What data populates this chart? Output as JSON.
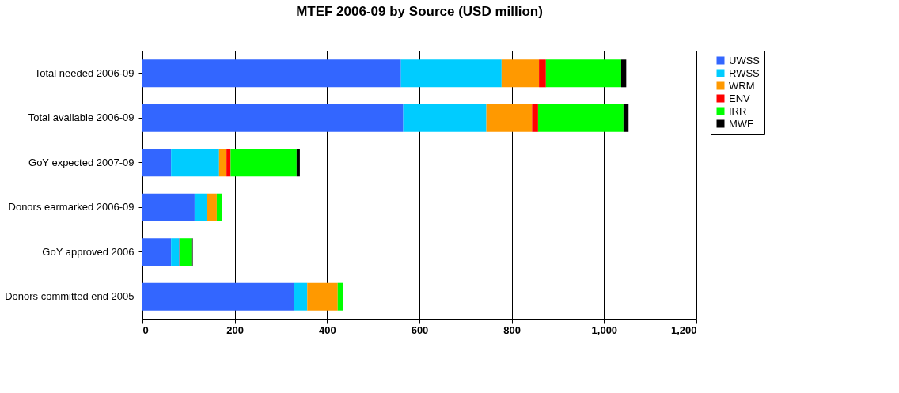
{
  "chart_data": {
    "type": "bar",
    "orientation": "horizontal",
    "stacked": true,
    "title": "MTEF 2006-09 by Source (USD million)",
    "categories": [
      "Total needed 2006-09",
      "Total available 2006-09",
      "GoY expected 2007-09",
      "Donors earmarked 2006-09",
      "GoY approved 2006",
      "Donors committed end 2005"
    ],
    "series": [
      {
        "name": "UWSS",
        "color": "#3366ff",
        "values": [
          560,
          565,
          62,
          113,
          62,
          329
        ]
      },
      {
        "name": "RWSS",
        "color": "#00ccff",
        "values": [
          218,
          180,
          104,
          27,
          18,
          28
        ]
      },
      {
        "name": "WRM",
        "color": "#ff9900",
        "values": [
          81,
          99,
          16,
          21,
          0,
          66
        ]
      },
      {
        "name": "ENV",
        "color": "#ff0000",
        "values": [
          15,
          13,
          9,
          0,
          2,
          0
        ]
      },
      {
        "name": "IRR",
        "color": "#00ff00",
        "values": [
          163,
          185,
          143,
          11,
          24,
          11
        ]
      },
      {
        "name": "MWE",
        "color": "#000000",
        "values": [
          11,
          11,
          7,
          0,
          3,
          0
        ]
      }
    ],
    "xlim": [
      0,
      1200
    ],
    "xticks": [
      0,
      200,
      400,
      600,
      800,
      {
        "value": 1000,
        "label": "1,000"
      },
      {
        "value": 1200,
        "label": "1,200"
      }
    ],
    "grid": "x",
    "legend": "right"
  }
}
